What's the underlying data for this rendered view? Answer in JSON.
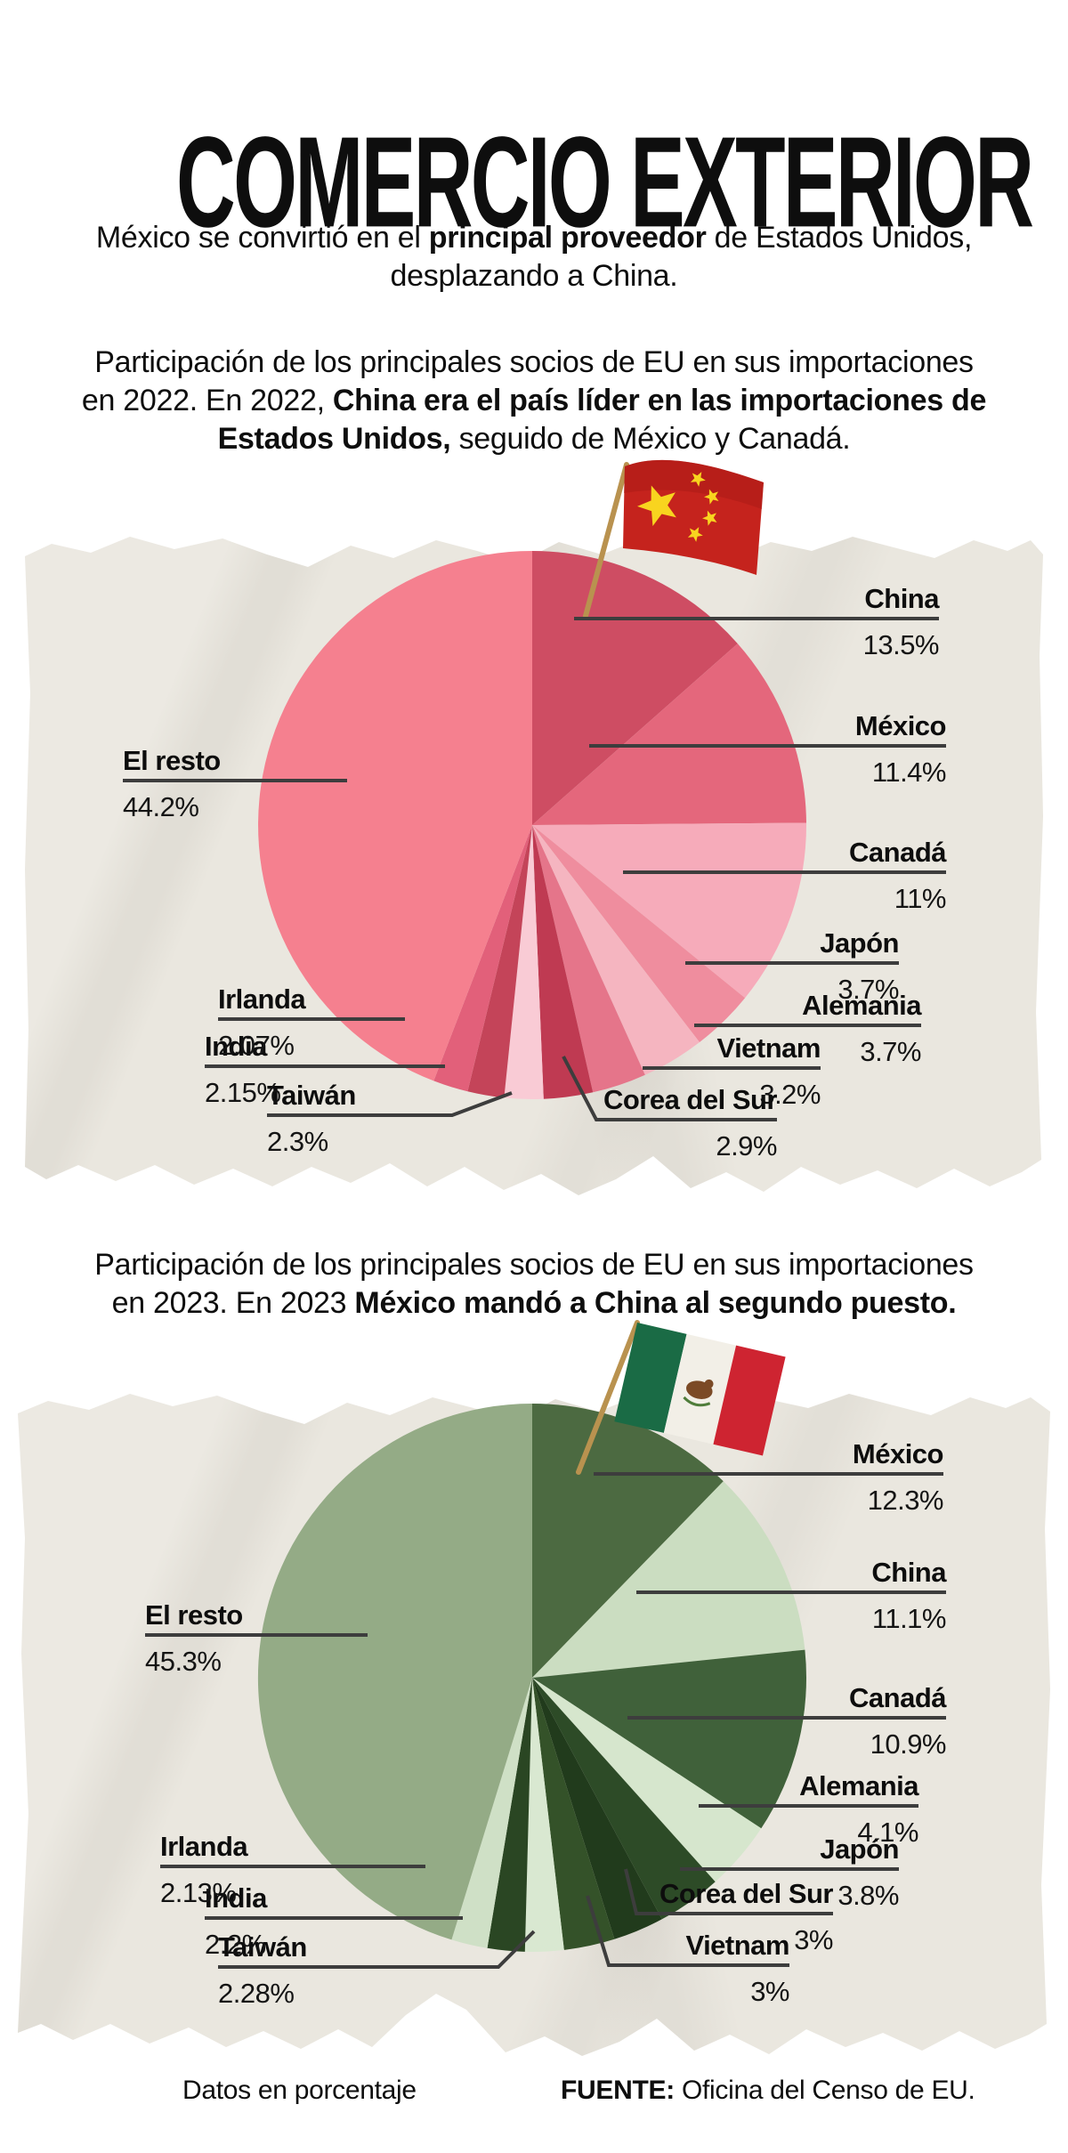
{
  "header": {
    "title": "COMERCIO EXTERIOR",
    "subtitle_segments": [
      {
        "text": "México se convirtió en el ",
        "bold": false
      },
      {
        "text": "principal proveedor",
        "bold": true
      },
      {
        "text": " de Estados Unidos, desplazando a China.",
        "bold": false
      }
    ]
  },
  "sections": [
    {
      "year": "2022",
      "intro_segments": [
        {
          "text": "Participación de los principales socios de EU en sus importaciones en 2022.  En 2022, ",
          "bold": false
        },
        {
          "text": "China era el país líder en las importaciones de Estados Unidos,",
          "bold": true
        },
        {
          "text": " seguido de México y Canadá.",
          "bold": false
        }
      ]
    },
    {
      "year": "2023",
      "intro_segments": [
        {
          "text": "Participación de los principales socios de EU en sus importaciones en 2023. En 2023 ",
          "bold": false
        },
        {
          "text": "México mandó a China al segundo puesto.",
          "bold": true
        }
      ]
    }
  ],
  "chart_data": [
    {
      "type": "pie",
      "year": "2022",
      "title": "Participación de los principales socios de EU en sus importaciones en 2022",
      "units": "percent of US imports",
      "start_angle": "12 o'clock",
      "direction": "clockwise",
      "flag_icon": "china-flag",
      "slices": [
        {
          "label": "China",
          "value": 13.5,
          "display": "13.5%",
          "color": "#ce4d63"
        },
        {
          "label": "México",
          "value": 11.4,
          "display": "11.4%",
          "color": "#e4677c"
        },
        {
          "label": "Canadá",
          "value": 11,
          "display": "11%",
          "color": "#f6abba"
        },
        {
          "label": "Japón",
          "value": 3.7,
          "display": "3.7%",
          "color": "#ef8d9e"
        },
        {
          "label": "Alemania",
          "value": 3.7,
          "display": "3.7%",
          "color": "#f5b5c0"
        },
        {
          "label": "Vietnam",
          "value": 3.2,
          "display": "3.2%",
          "color": "#e5758a"
        },
        {
          "label": "Corea del Sur",
          "value": 2.9,
          "display": "2.9%",
          "color": "#bf3a52"
        },
        {
          "label": "Taiwán",
          "value": 2.3,
          "display": "2.3%",
          "color": "#f9cbd5"
        },
        {
          "label": "India",
          "value": 2.15,
          "display": "2.15%",
          "color": "#c44459"
        },
        {
          "label": "Irlanda",
          "value": 2.07,
          "display": "2.07%",
          "color": "#e2607a"
        },
        {
          "label": "El resto",
          "value": 44.2,
          "display": "44.2%",
          "color": "#f5808f"
        }
      ]
    },
    {
      "type": "pie",
      "year": "2023",
      "title": "Participación de los principales socios de EU en sus importaciones en 2023",
      "units": "percent of US imports",
      "start_angle": "12 o'clock",
      "direction": "clockwise",
      "flag_icon": "mexico-flag",
      "slices": [
        {
          "label": "México",
          "value": 12.3,
          "display": "12.3%",
          "color": "#4c6a41"
        },
        {
          "label": "China",
          "value": 11.1,
          "display": "11.1%",
          "color": "#cbddc1"
        },
        {
          "label": "Canadá",
          "value": 10.9,
          "display": "10.9%",
          "color": "#40613a"
        },
        {
          "label": "Alemania",
          "value": 4.1,
          "display": "4.1%",
          "color": "#d6e6cd"
        },
        {
          "label": "Japón",
          "value": 3.8,
          "display": "3.8%",
          "color": "#2d4b27"
        },
        {
          "label": "Corea del Sur",
          "value": 3,
          "display": "3%",
          "color": "#213b1c"
        },
        {
          "label": "Vietnam",
          "value": 3,
          "display": "3%",
          "color": "#345229"
        },
        {
          "label": "Taiwán",
          "value": 2.28,
          "display": "2.28%",
          "color": "#d9e8d1"
        },
        {
          "label": "India",
          "value": 2.2,
          "display": "2.2%",
          "color": "#2a4623"
        },
        {
          "label": "Irlanda",
          "value": 2.13,
          "display": "2.13%",
          "color": "#cfe0c6"
        },
        {
          "label": "El resto",
          "value": 45.3,
          "display": "45.3%",
          "color": "#94ab86"
        }
      ]
    }
  ],
  "footer": {
    "note": "Datos en porcentaje",
    "source_label": "FUENTE:",
    "source": "Oficina del Censo de EU."
  }
}
